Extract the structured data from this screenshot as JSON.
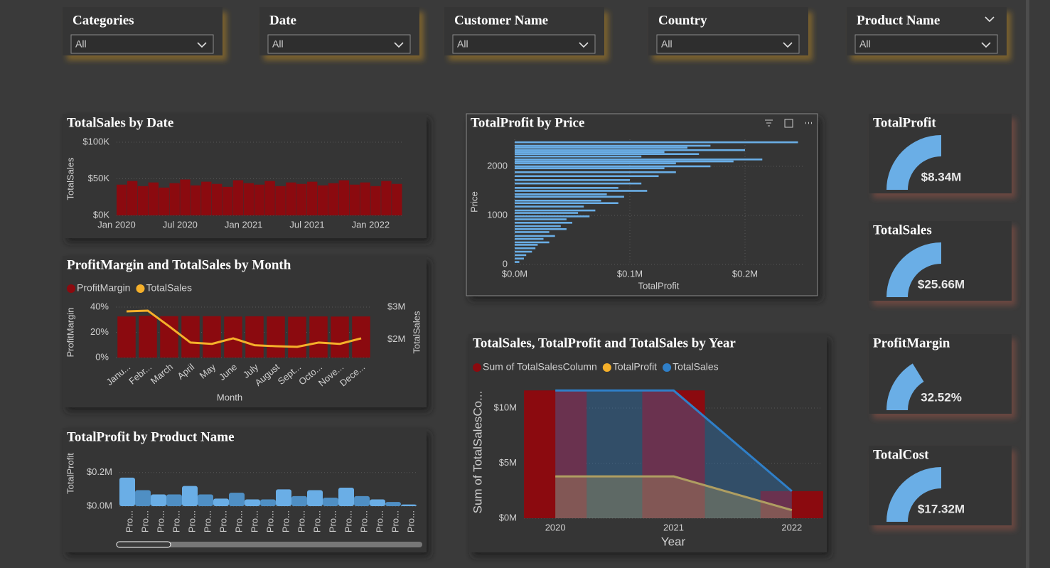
{
  "slicers": [
    {
      "title": "Categories",
      "value": "All"
    },
    {
      "title": "Date",
      "value": "All"
    },
    {
      "title": "Customer Name",
      "value": "All"
    },
    {
      "title": "Country",
      "value": "All"
    },
    {
      "title": "Product Name",
      "value": "All"
    }
  ],
  "chart_data": [
    {
      "type": "bar",
      "title": "TotalSales by Date",
      "y_label": "TotalSales",
      "color": "#8b0a0f",
      "x": [
        "2020-01",
        "2020-02",
        "2020-03",
        "2020-04",
        "2020-05",
        "2020-06",
        "2020-07",
        "2020-08",
        "2020-09",
        "2020-10",
        "2020-11",
        "2020-12",
        "2021-01",
        "2021-02",
        "2021-03",
        "2021-04",
        "2021-05",
        "2021-06",
        "2021-07",
        "2021-08",
        "2021-09",
        "2021-10",
        "2021-11",
        "2021-12",
        "2022-01",
        "2022-02",
        "2022-03"
      ],
      "values": [
        42000,
        47000,
        40000,
        45000,
        38000,
        44000,
        49000,
        41000,
        46000,
        43000,
        39000,
        48000,
        44000,
        42000,
        47000,
        40000,
        45000,
        43000,
        46000,
        41000,
        44000,
        48000,
        42000,
        45000,
        40000,
        47000,
        43000
      ],
      "xlim": [
        "2020-01",
        "2022-03"
      ],
      "xticks": [
        {
          "value": "2020-01",
          "label": "Jan 2020"
        },
        {
          "value": "2020-07",
          "label": "Jul 2020"
        },
        {
          "value": "2021-01",
          "label": "Jan 2021"
        },
        {
          "value": "2021-07",
          "label": "Jul 2021"
        },
        {
          "value": "2022-01",
          "label": "Jan 2022"
        }
      ],
      "ylim": [
        0,
        100000
      ],
      "yticks": [
        {
          "value": 0,
          "label": "$0K"
        },
        {
          "value": 50000,
          "label": "$50K"
        },
        {
          "value": 100000,
          "label": "$100K"
        }
      ],
      "grid": true
    },
    {
      "type": "combo",
      "title": "ProfitMargin and TotalSales by Month",
      "x_label": "Month",
      "y_label": "ProfitMargin",
      "y2_label": "TotalSales",
      "categories": [
        "Janu...",
        "Febr...",
        "March",
        "April",
        "May",
        "June",
        "July",
        "August",
        "Sept...",
        "Octo...",
        "Nove...",
        "Dece..."
      ],
      "series": [
        {
          "name": "ProfitMargin",
          "type": "bar",
          "color": "#8b0a0f",
          "values": [
            32.6,
            33.1,
            32.8,
            32.9,
            32.8,
            32.5,
            32.7,
            32.6,
            32.4,
            32.6,
            32.5,
            32.6
          ]
        },
        {
          "name": "TotalSales",
          "type": "line",
          "axis": "y2",
          "color": "#f5b02a",
          "values": [
            2870000,
            2890000,
            2410000,
            1910000,
            1870000,
            2040000,
            1830000,
            1800000,
            1780000,
            1910000,
            1870000,
            2040000
          ]
        }
      ],
      "ylim": [
        0,
        40
      ],
      "yticks": [
        {
          "value": 0,
          "label": "0%"
        },
        {
          "value": 20,
          "label": "20%"
        },
        {
          "value": 40,
          "label": "40%"
        }
      ],
      "y2lim": [
        1450000,
        3000000
      ],
      "y2ticks": [
        {
          "value": 2000000,
          "label": "$2M"
        },
        {
          "value": 3000000,
          "label": "$3M"
        }
      ]
    },
    {
      "type": "bar",
      "title": "TotalProfit by Product Name",
      "y_label": "TotalProfit",
      "color": "#6aaee6",
      "categories": [
        "Pro...",
        "Pro...",
        "Pro...",
        "Pro...",
        "Pro...",
        "Pro...",
        "Pro...",
        "Pro...",
        "Pro...",
        "Pro...",
        "Pro...",
        "Pro...",
        "Pro...",
        "Pro...",
        "Pro...",
        "Pro...",
        "Pro...",
        "Pro...",
        "Pro..."
      ],
      "values": [
        170000,
        95000,
        70000,
        70000,
        120000,
        70000,
        45000,
        80000,
        40000,
        40000,
        100000,
        60000,
        95000,
        50000,
        110000,
        60000,
        40000,
        25000,
        10000
      ],
      "ylim": [
        0,
        220000
      ],
      "yticks": [
        {
          "value": 0,
          "label": "$0.0M"
        },
        {
          "value": 200000,
          "label": "$0.2M"
        }
      ]
    },
    {
      "type": "bar",
      "orientation": "horizontal",
      "title": "TotalProfit by Price",
      "x_label": "TotalProfit",
      "y_label": "Price",
      "color": "#6aaee6",
      "y": [
        2490,
        2420,
        2380,
        2330,
        2290,
        2250,
        2200,
        2140,
        2100,
        2060,
        2000,
        1960,
        1880,
        1800,
        1720,
        1650,
        1560,
        1500,
        1430,
        1380,
        1300,
        1250,
        1180,
        1100,
        1050,
        980,
        920,
        850,
        780,
        720,
        660,
        580,
        520,
        450,
        400,
        330,
        260,
        190,
        120,
        50
      ],
      "values": [
        246000,
        170000,
        150000,
        200000,
        130000,
        160000,
        110000,
        215000,
        190000,
        140000,
        170000,
        130000,
        140000,
        125000,
        100000,
        110000,
        90000,
        115000,
        80000,
        95000,
        75000,
        90000,
        60000,
        70000,
        55000,
        65000,
        45000,
        50000,
        40000,
        45000,
        30000,
        35000,
        25000,
        30000,
        20000,
        18000,
        15000,
        10000,
        8000,
        4000
      ],
      "xlim": [
        0,
        250000
      ],
      "xticks": [
        {
          "value": 0,
          "label": "$0.0M"
        },
        {
          "value": 100000,
          "label": "$0.1M"
        },
        {
          "value": 200000,
          "label": "$0.2M"
        }
      ],
      "ylim": [
        0,
        2550
      ],
      "yticks": [
        0,
        1000,
        2000
      ],
      "grid": true
    },
    {
      "type": "combo",
      "title": "TotalSales, TotalProfit and TotalSales by Year",
      "x_label": "Year",
      "y_label": "Sum of TotalSalesCo...",
      "categories": [
        "2020",
        "2021",
        "2022"
      ],
      "series": [
        {
          "name": "Sum of TotalSalesColumn",
          "type": "bar",
          "color": "#8b0a0f",
          "values": [
            11600000,
            11600000,
            2460000
          ]
        },
        {
          "name": "TotalProfit",
          "type": "area",
          "color": "#f5b02a",
          "values": [
            3800000,
            3800000,
            740000
          ]
        },
        {
          "name": "TotalSales",
          "type": "area",
          "color": "#2f7fc8",
          "values": [
            11600000,
            11600000,
            2460000
          ]
        }
      ],
      "ylim": [
        0,
        12000000
      ],
      "yticks": [
        {
          "value": 0,
          "label": "$0M"
        },
        {
          "value": 5000000,
          "label": "$5M"
        },
        {
          "value": 10000000,
          "label": "$10M"
        }
      ]
    },
    {
      "type": "gauge",
      "title": "TotalProfit",
      "values": [
        8340000
      ],
      "value_labels": [
        "$8.34M"
      ],
      "ylim": [
        0,
        16680000
      ],
      "color": "#6aaee6"
    },
    {
      "type": "gauge",
      "title": "TotalSales",
      "values": [
        25660000
      ],
      "value_labels": [
        "$25.66M"
      ],
      "ylim": [
        0,
        51320000
      ],
      "color": "#6aaee6"
    },
    {
      "type": "gauge",
      "title": "ProfitMargin",
      "values": [
        32.52
      ],
      "value_labels": [
        "32.52%"
      ],
      "ylim": [
        0,
        100
      ],
      "color": "#6aaee6"
    },
    {
      "type": "gauge",
      "title": "TotalCost",
      "values": [
        17320000
      ],
      "value_labels": [
        "$17.32M"
      ],
      "ylim": [
        0,
        34640000
      ],
      "color": "#6aaee6"
    }
  ]
}
